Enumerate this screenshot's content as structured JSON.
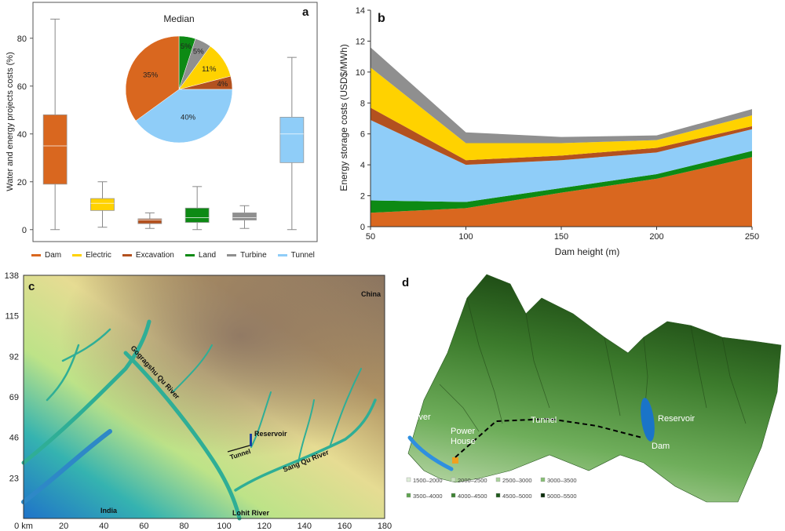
{
  "colors": {
    "Dam": "#d9671f",
    "Electric": "#ffd200",
    "Excavation": "#b3511f",
    "Land": "#0d8a14",
    "Turbine": "#8f8f8f",
    "Tunnel": "#8fcdf8"
  },
  "panel_a": {
    "letter": "a",
    "legend": [
      "Dam",
      "Electric",
      "Excavation",
      "Land",
      "Turbine",
      "Tunnel"
    ],
    "chart_data": {
      "type": "box",
      "categories": [
        "Dam",
        "Electric",
        "Excavation",
        "Land",
        "Turbine",
        "Tunnel"
      ],
      "ylabel": "Water and energy projects costs (%)",
      "ylim": [
        -5,
        95
      ],
      "yticks": [
        0,
        20,
        40,
        60,
        80
      ],
      "boxes": [
        {
          "name": "Dam",
          "min": 0,
          "q1": 19,
          "median": 35,
          "q3": 48,
          "max": 88
        },
        {
          "name": "Electric",
          "min": 1,
          "q1": 8,
          "median": 11,
          "q3": 13,
          "max": 20
        },
        {
          "name": "Excavation",
          "min": 0.5,
          "q1": 2.5,
          "median": 4,
          "q3": 4.5,
          "max": 7
        },
        {
          "name": "Land",
          "min": 0,
          "q1": 3,
          "median": 5,
          "q3": 9,
          "max": 18
        },
        {
          "name": "Turbine",
          "min": 0.5,
          "q1": 4,
          "median": 5,
          "q3": 7,
          "max": 10
        },
        {
          "name": "Tunnel",
          "min": 0,
          "q1": 28,
          "median": 40,
          "q3": 47,
          "max": 72
        }
      ]
    },
    "pie": {
      "title": "Median",
      "type": "pie",
      "slices": [
        {
          "name": "Land",
          "value": 5,
          "label": "5%"
        },
        {
          "name": "Turbine",
          "value": 5,
          "label": "5%"
        },
        {
          "name": "Electric",
          "value": 11,
          "label": "11%"
        },
        {
          "name": "Excavation",
          "value": 4,
          "label": "4%"
        },
        {
          "name": "Tunnel",
          "value": 40,
          "label": "40%"
        },
        {
          "name": "Dam",
          "value": 35,
          "label": "35%"
        }
      ]
    }
  },
  "panel_b": {
    "letter": "b",
    "chart_data": {
      "type": "area",
      "stacked": true,
      "x": [
        50,
        100,
        150,
        200,
        250
      ],
      "xlabel": "Dam height (m)",
      "ylabel": "Energy storage costs (USD$/MWh)",
      "xlim": [
        50,
        250
      ],
      "ylim": [
        0,
        14
      ],
      "xticks": [
        50,
        100,
        150,
        200,
        250
      ],
      "yticks": [
        0,
        2,
        4,
        6,
        8,
        10,
        12,
        14
      ],
      "series": [
        {
          "name": "Dam",
          "values": [
            0.9,
            1.2,
            2.2,
            3.1,
            4.5
          ]
        },
        {
          "name": "Land",
          "values": [
            0.8,
            0.4,
            0.3,
            0.3,
            0.4
          ]
        },
        {
          "name": "Tunnel",
          "values": [
            5.2,
            2.4,
            1.8,
            1.4,
            1.4
          ]
        },
        {
          "name": "Excavation",
          "values": [
            0.8,
            0.3,
            0.3,
            0.3,
            0.2
          ]
        },
        {
          "name": "Electric",
          "values": [
            2.6,
            1.1,
            0.8,
            0.5,
            0.7
          ]
        },
        {
          "name": "Turbine",
          "values": [
            1.3,
            0.7,
            0.4,
            0.3,
            0.4
          ]
        }
      ]
    }
  },
  "panel_c": {
    "letter": "c",
    "yticks": [
      "138",
      "115",
      "92",
      "69",
      "46",
      "23"
    ],
    "xticks": [
      "0 km",
      "20",
      "40",
      "60",
      "80",
      "100",
      "120",
      "140",
      "160",
      "180"
    ],
    "labels": {
      "china": "China",
      "india": "India",
      "reservoir": "Reservoir",
      "tunnel": "Tunnel",
      "gogra": "Gogragshu Qu River",
      "sang": "Sang Qu River",
      "lohit": "Lohit River"
    }
  },
  "panel_d": {
    "letter": "d",
    "labels": {
      "river": "River",
      "power_house_1": "Power",
      "power_house_2": "House",
      "tunnel": "Tunnel",
      "reservoir": "Reservoir",
      "dam": "Dam"
    },
    "legend": [
      {
        "label": "1500–2000",
        "color": "#dfeed9"
      },
      {
        "label": "2000–2500",
        "color": "#c8e2bd"
      },
      {
        "label": "2500–3000",
        "color": "#a9d29a"
      },
      {
        "label": "3000–3500",
        "color": "#86bf74"
      },
      {
        "label": "3500–4000",
        "color": "#5fa450"
      },
      {
        "label": "4000–4500",
        "color": "#3d8233"
      },
      {
        "label": "4500–5000",
        "color": "#1f5a1c"
      },
      {
        "label": "5000–5500",
        "color": "#0a2d0a"
      }
    ]
  }
}
